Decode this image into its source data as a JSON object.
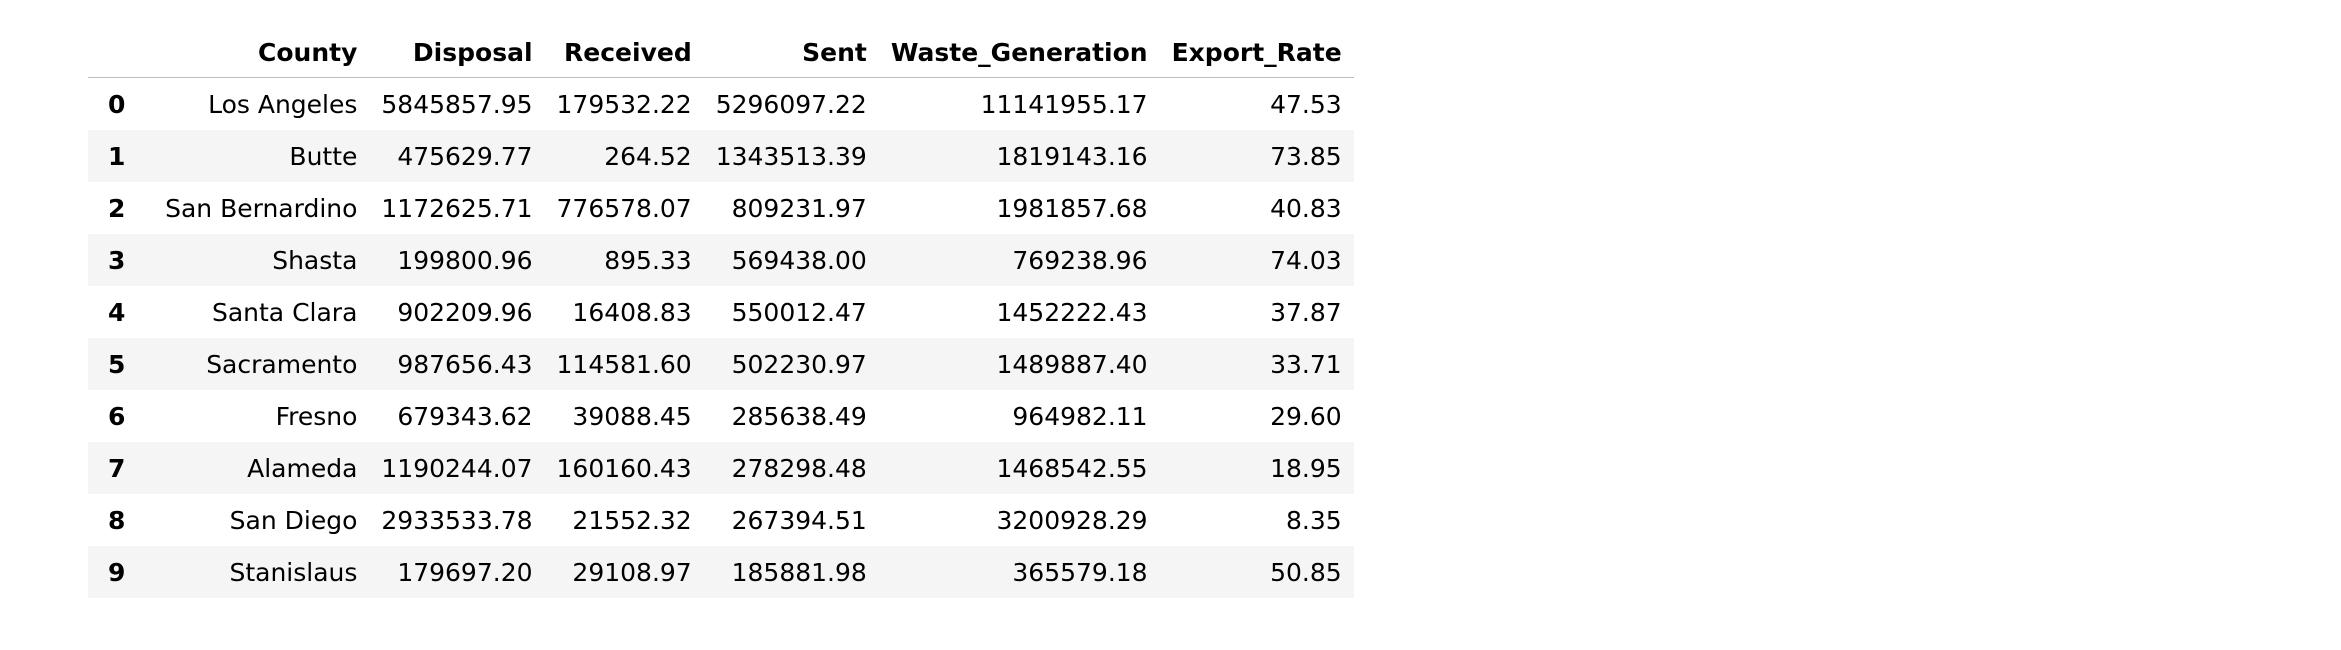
{
  "table": {
    "columns": [
      "",
      "County",
      "Disposal",
      "Received",
      "Sent",
      "Waste_Generation",
      "Export_Rate"
    ],
    "rows": [
      {
        "index": "0",
        "cells": [
          "Los Angeles",
          "5845857.95",
          "179532.22",
          "5296097.22",
          "11141955.17",
          "47.53"
        ]
      },
      {
        "index": "1",
        "cells": [
          "Butte",
          "475629.77",
          "264.52",
          "1343513.39",
          "1819143.16",
          "73.85"
        ]
      },
      {
        "index": "2",
        "cells": [
          "San Bernardino",
          "1172625.71",
          "776578.07",
          "809231.97",
          "1981857.68",
          "40.83"
        ]
      },
      {
        "index": "3",
        "cells": [
          "Shasta",
          "199800.96",
          "895.33",
          "569438.00",
          "769238.96",
          "74.03"
        ]
      },
      {
        "index": "4",
        "cells": [
          "Santa Clara",
          "902209.96",
          "16408.83",
          "550012.47",
          "1452222.43",
          "37.87"
        ]
      },
      {
        "index": "5",
        "cells": [
          "Sacramento",
          "987656.43",
          "114581.60",
          "502230.97",
          "1489887.40",
          "33.71"
        ]
      },
      {
        "index": "6",
        "cells": [
          "Fresno",
          "679343.62",
          "39088.45",
          "285638.49",
          "964982.11",
          "29.60"
        ]
      },
      {
        "index": "7",
        "cells": [
          "Alameda",
          "1190244.07",
          "160160.43",
          "278298.48",
          "1468542.55",
          "18.95"
        ]
      },
      {
        "index": "8",
        "cells": [
          "San Diego",
          "2933533.78",
          "21552.32",
          "267394.51",
          "3200928.29",
          "8.35"
        ]
      },
      {
        "index": "9",
        "cells": [
          "Stanislaus",
          "179697.20",
          "29108.97",
          "185881.98",
          "365579.18",
          "50.85"
        ]
      }
    ]
  }
}
